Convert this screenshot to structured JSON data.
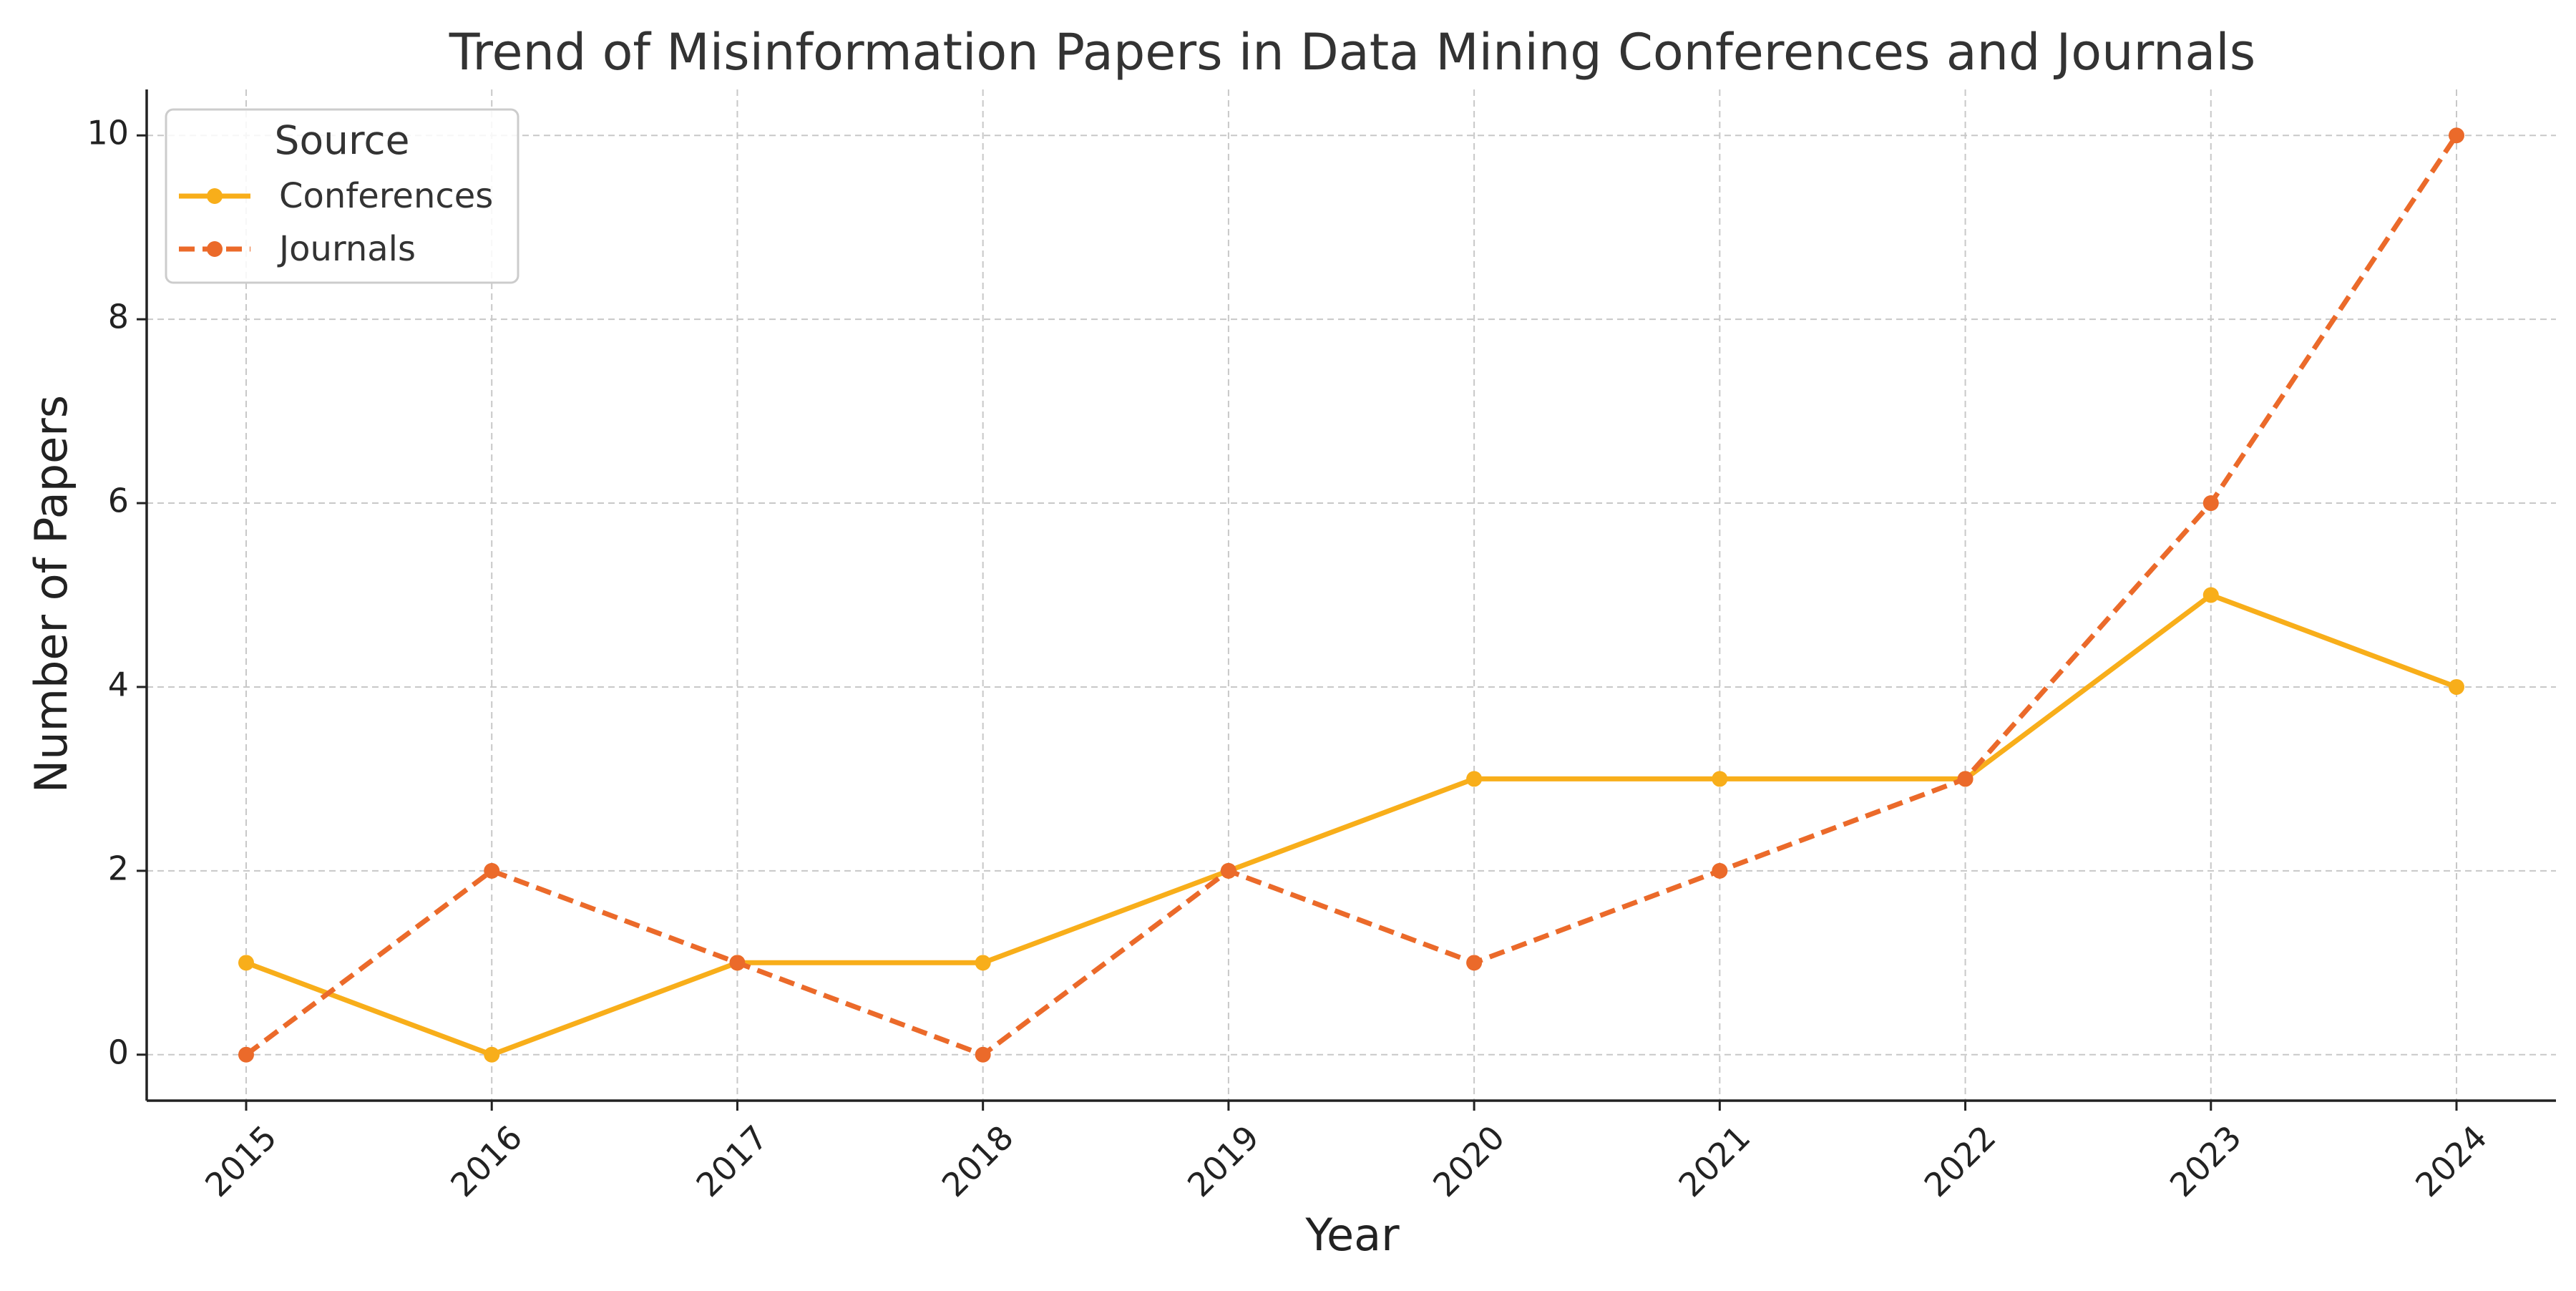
{
  "chart_data": {
    "type": "line",
    "title": "Trend of Misinformation Papers in Data Mining Conferences and Journals",
    "xlabel": "Year",
    "ylabel": "Number of Papers",
    "x": [
      2015,
      2016,
      2017,
      2018,
      2019,
      2020,
      2021,
      2022,
      2023,
      2024
    ],
    "x_tick_labels": [
      "2015",
      "2016",
      "2017",
      "2018",
      "2019",
      "2020",
      "2021",
      "2022",
      "2023",
      "2024"
    ],
    "y_ticks": [
      0,
      2,
      4,
      6,
      8,
      10
    ],
    "y_tick_labels": [
      "0",
      "2",
      "4",
      "6",
      "8",
      "10"
    ],
    "ylim": [
      -0.5,
      10.5
    ],
    "grid": true,
    "legend": {
      "title": "Source",
      "placement": "top-left"
    },
    "series": [
      {
        "name": "Conferences",
        "values": [
          1,
          0,
          1,
          1,
          2,
          3,
          3,
          3,
          5,
          4
        ],
        "color": "#F8AE1A",
        "line_style": "solid",
        "marker": "circle"
      },
      {
        "name": "Journals",
        "values": [
          0,
          2,
          1,
          0,
          2,
          1,
          2,
          3,
          6,
          10
        ],
        "color": "#EB6A2A",
        "line_style": "dashed",
        "marker": "circle"
      }
    ]
  }
}
